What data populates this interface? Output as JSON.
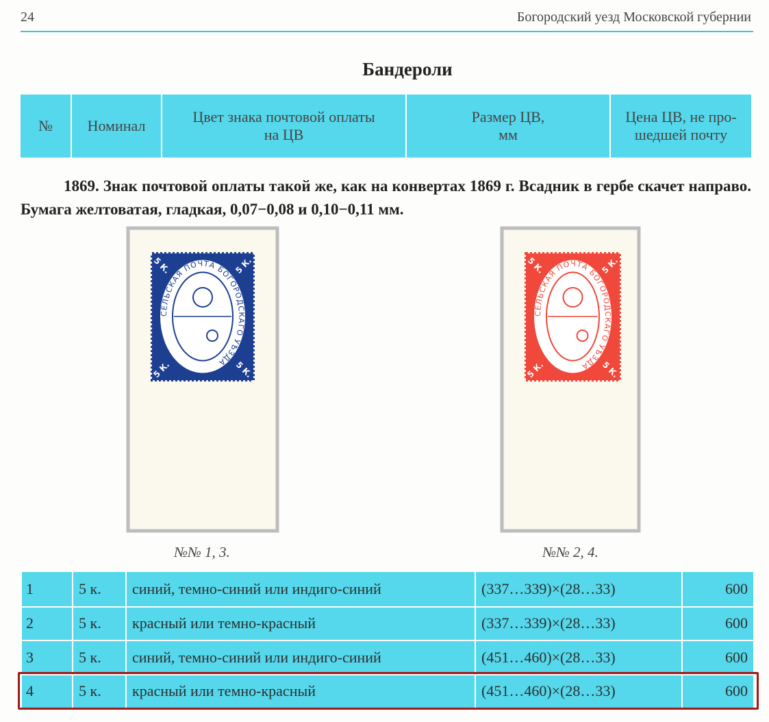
{
  "header": {
    "page_number": "24",
    "running_title": "Богородский уезд Московской губернии"
  },
  "section_title": "Бандероли",
  "table_header": [
    "№",
    "Номинал",
    "Цвет знака почтовой оплаты\nна ЦВ",
    "Размер ЦВ,\nмм",
    "Цена ЦВ, не про-\nшедшей почту"
  ],
  "paragraph": "1869. Знак почтовой оплаты такой же, как на конвертах 1869 г. Всадник в гербе скачет направо. Бумага желтоватая, гладкая, 0,07−0,08 и 0,10−0,11 мм.",
  "figures": [
    {
      "caption": "№№ 1, 3.",
      "stamp_inscription": "СЕЛЬСКАЯ ПОЧТА БОГОРОДСКАГО УѢЗДА",
      "stamp_value": "5 К.",
      "color": "#1d3f91"
    },
    {
      "caption": "№№ 2, 4.",
      "stamp_inscription": "СЕЛЬСКАЯ ПОЧТА БОГОРОДСКАГО УѢЗДА",
      "stamp_value": "5 К.",
      "color": "#f0483a"
    }
  ],
  "table": {
    "rows": [
      [
        "1",
        "5 к.",
        "синий, темно-синий или индиго-синий",
        "(337…339)×(28…33)",
        "600"
      ],
      [
        "2",
        "5 к.",
        "красный или темно-красный",
        "(337…339)×(28…33)",
        "600"
      ],
      [
        "3",
        "5 к.",
        "синий, темно-синий или индиго-синий",
        "(451…460)×(28…33)",
        "600"
      ],
      [
        "4",
        "5 к.",
        "красный или темно-красный",
        "(451…460)×(28…33)",
        "600"
      ]
    ]
  }
}
